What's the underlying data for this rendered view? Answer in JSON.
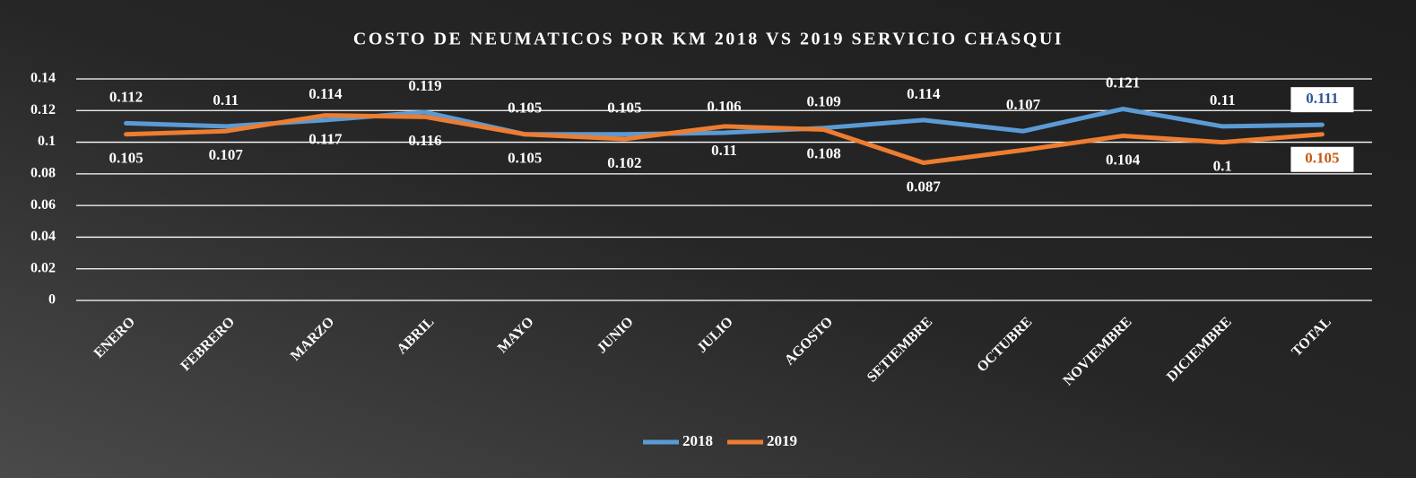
{
  "chart_data": {
    "type": "line",
    "title": "COSTO DE NEUMATICOS POR KM 2018 VS 2019 SERVICIO CHASQUI",
    "categories": [
      "ENERO",
      "FEBRERO",
      "MARZO",
      "ABRIL",
      "MAYO",
      "JUNIO",
      "JULIO",
      "AGOSTO",
      "SETIEMBRE",
      "OCTUBRE",
      "NOVIEMBRE",
      "DICIEMBRE",
      "TOTAL"
    ],
    "series": [
      {
        "name": "2018",
        "color": "#5b9bd5",
        "values": [
          0.112,
          0.11,
          0.114,
          0.119,
          0.105,
          0.105,
          0.106,
          0.109,
          0.114,
          0.107,
          0.121,
          0.11,
          0.111
        ]
      },
      {
        "name": "2019",
        "color": "#ed7d31",
        "values": [
          0.105,
          0.107,
          0.117,
          0.116,
          0.105,
          0.102,
          0.11,
          0.108,
          0.087,
          0.095,
          0.104,
          0.1,
          0.105
        ],
        "value_labels": [
          "0.105",
          "0.107",
          "0.117",
          "0.116",
          "0.105",
          "0.102",
          "0.11",
          "0.108",
          "0.087",
          null,
          "0.104",
          "0.1",
          "0.105"
        ]
      }
    ],
    "ylim": [
      0,
      0.14
    ],
    "yticks": [
      0,
      0.02,
      0.04,
      0.06,
      0.08,
      0.1,
      0.12,
      0.14
    ],
    "grid": true,
    "legend": "bottom"
  }
}
